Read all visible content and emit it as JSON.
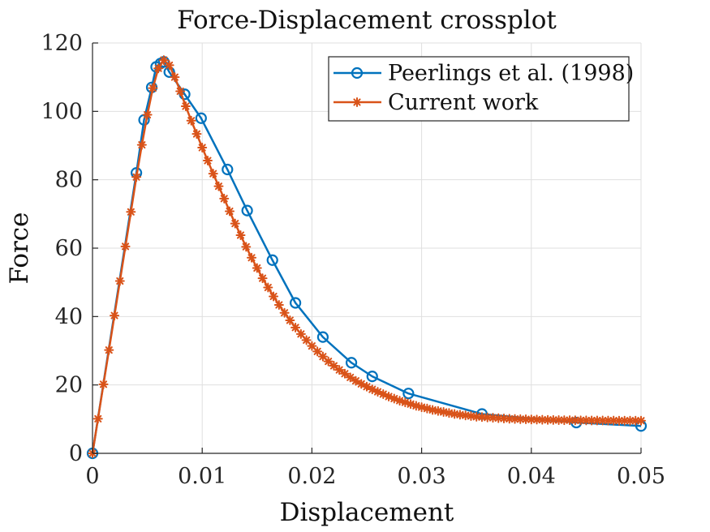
{
  "chart_data": {
    "type": "line",
    "title": "Force-Displacement crossplot",
    "xlabel": "Displacement",
    "ylabel": "Force",
    "xlim": [
      0,
      0.05
    ],
    "ylim": [
      0,
      120
    ],
    "xticks": [
      0,
      0.01,
      0.02,
      0.03,
      0.04,
      0.05
    ],
    "xtick_labels": [
      "0",
      "0.01",
      "0.02",
      "0.03",
      "0.04",
      "0.05"
    ],
    "yticks": [
      0,
      20,
      40,
      60,
      80,
      100,
      120
    ],
    "ytick_labels": [
      "0",
      "20",
      "40",
      "60",
      "80",
      "100",
      "120"
    ],
    "grid": true,
    "legend_position": "top-right",
    "series": [
      {
        "name": "Peerlings et al. (1998)",
        "color": "#0072BD",
        "marker": "circle",
        "x": [
          0,
          0.004,
          0.0047,
          0.0054,
          0.0058,
          0.0062,
          0.0065,
          0.007,
          0.0084,
          0.0099,
          0.0123,
          0.0141,
          0.0164,
          0.0185,
          0.021,
          0.0236,
          0.0255,
          0.0288,
          0.0355,
          0.0441,
          0.05
        ],
        "y": [
          0,
          82,
          97.5,
          107,
          113,
          114,
          114.5,
          111.5,
          105,
          98,
          83,
          71,
          56.5,
          44,
          34,
          26.5,
          22.5,
          17.5,
          11.5,
          9,
          8
        ]
      },
      {
        "name": "Current work",
        "color": "#D95319",
        "marker": "asterisk",
        "x": [
          0,
          0.0005,
          0.001,
          0.0015,
          0.002,
          0.0025,
          0.003,
          0.0035,
          0.004,
          0.0045,
          0.005,
          0.0055,
          0.006,
          0.0065,
          0.007,
          0.0075,
          0.008,
          0.0085,
          0.009,
          0.0095,
          0.01,
          0.0105,
          0.011,
          0.0115,
          0.012,
          0.0125,
          0.013,
          0.0135,
          0.014,
          0.0145,
          0.015,
          0.0155,
          0.016,
          0.0165,
          0.017,
          0.0175,
          0.018,
          0.0185,
          0.019,
          0.0195,
          0.02,
          0.0205,
          0.021,
          0.0215,
          0.022,
          0.0225,
          0.023,
          0.0235,
          0.024,
          0.0245,
          0.025,
          0.0255,
          0.026,
          0.0265,
          0.027,
          0.0275,
          0.028,
          0.0285,
          0.029,
          0.0295,
          0.03,
          0.0305,
          0.031,
          0.0315,
          0.032,
          0.0325,
          0.033,
          0.0335,
          0.034,
          0.0345,
          0.035,
          0.0355,
          0.036,
          0.0365,
          0.037,
          0.0375,
          0.038,
          0.0385,
          0.039,
          0.0395,
          0.04,
          0.0405,
          0.041,
          0.0415,
          0.042,
          0.0425,
          0.043,
          0.0435,
          0.044,
          0.0445,
          0.045,
          0.0455,
          0.046,
          0.0465,
          0.047,
          0.0475,
          0.048,
          0.0485,
          0.049,
          0.0495,
          0.05
        ],
        "y": [
          0,
          10.1,
          20.2,
          30.2,
          40.3,
          50.4,
          60.5,
          70.6,
          80.8,
          90.2,
          99,
          106.8,
          112.6,
          115,
          113.5,
          110,
          105.9,
          101.5,
          97.3,
          93.4,
          89.4,
          85.6,
          81.8,
          78.1,
          74.5,
          70.8,
          67.2,
          63.8,
          60.4,
          57.2,
          54.2,
          51.2,
          48.5,
          45.9,
          43.4,
          41.1,
          38.9,
          36.8,
          34.9,
          33.1,
          31.4,
          29.8,
          28.3,
          26.9,
          25.6,
          24.4,
          23.3,
          22.2,
          21.2,
          20.3,
          19.5,
          18.7,
          18,
          17.3,
          16.6,
          16,
          15.4,
          14.9,
          14.4,
          13.9,
          13.5,
          13.1,
          12.7,
          12.4,
          12.1,
          11.8,
          11.5,
          11.3,
          11.1,
          10.9,
          10.7,
          10.6,
          10.5,
          10.4,
          10.3,
          10.2,
          10.1,
          10.05,
          10,
          9.95,
          9.9,
          9.86,
          9.82,
          9.78,
          9.75,
          9.72,
          9.7,
          9.68,
          9.66,
          9.64,
          9.62,
          9.61,
          9.6,
          9.59,
          9.58,
          9.57,
          9.56,
          9.55,
          9.55,
          9.54,
          9.54
        ]
      }
    ]
  }
}
